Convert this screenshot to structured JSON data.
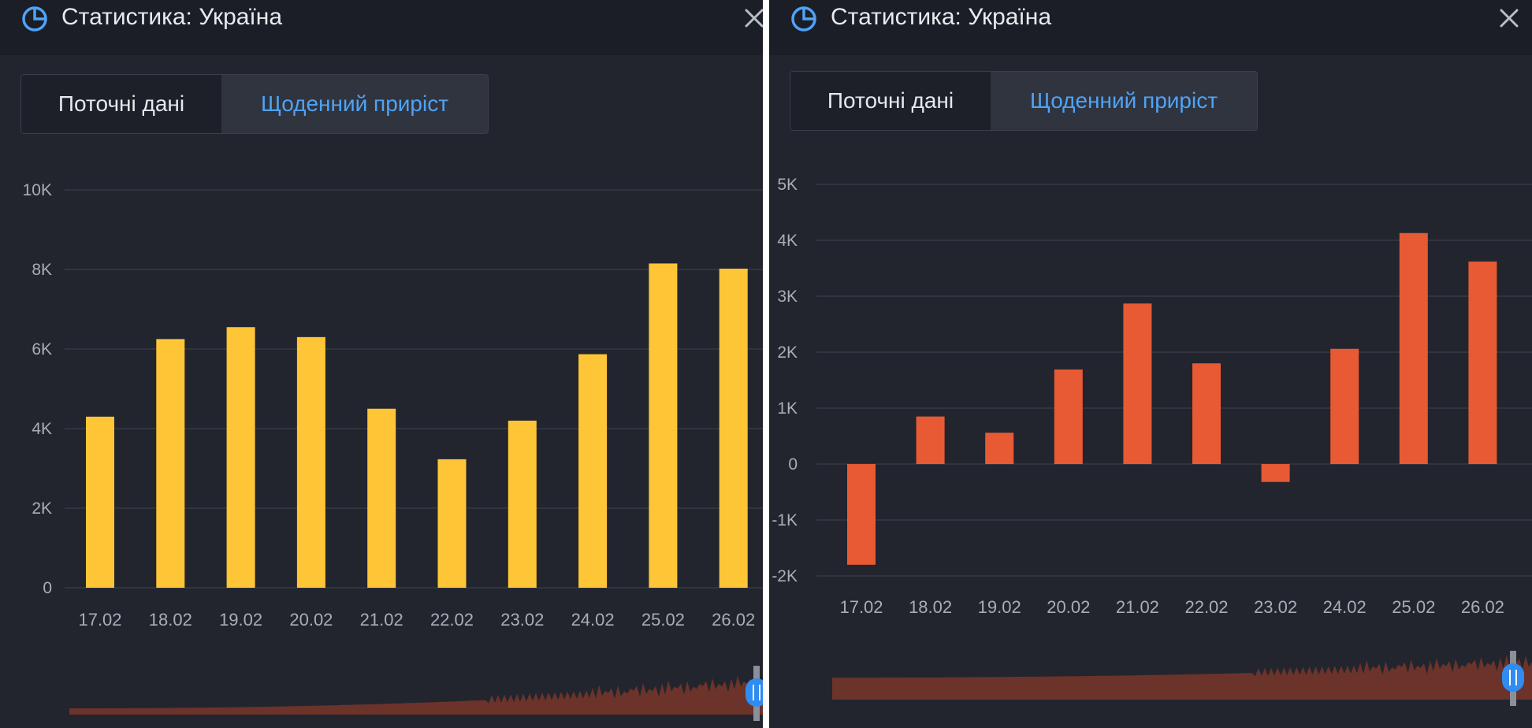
{
  "colors": {
    "panel_bg": "#22252e",
    "header_bg": "#1b1e26",
    "accent_blue": "#4fa3f7",
    "bar_yellow": "#fec636",
    "bar_orange": "#e75a34",
    "navigator_fill": "#6b3329"
  },
  "panels": [
    {
      "header": {
        "title": "Статистика: Україна",
        "icon": "pie-chart-icon",
        "close_icon": "close-icon"
      },
      "tabs": [
        {
          "label": "Поточні дані"
        },
        {
          "label": "Щоденний приріст",
          "active": true
        }
      ]
    },
    {
      "header": {
        "title": "Статистика: Україна",
        "icon": "pie-chart-icon",
        "close_icon": "close-icon"
      },
      "tabs": [
        {
          "label": "Поточні дані"
        },
        {
          "label": "Щоденний приріст",
          "active": true
        }
      ]
    }
  ],
  "chart_data": [
    {
      "type": "bar",
      "categories": [
        "17.02",
        "18.02",
        "19.02",
        "20.02",
        "21.02",
        "22.02",
        "23.02",
        "24.02",
        "25.02",
        "26.02"
      ],
      "values": [
        4300,
        6250,
        6550,
        6300,
        4500,
        3230,
        4200,
        5870,
        8150,
        8020
      ],
      "ylim": [
        0,
        10000
      ],
      "yticks": [
        0,
        2000,
        4000,
        6000,
        8000,
        10000
      ],
      "ytick_labels": [
        "0",
        "2K",
        "4K",
        "6K",
        "8K",
        "10K"
      ],
      "color": "#fec636",
      "grid": true
    },
    {
      "type": "bar",
      "categories": [
        "17.02",
        "18.02",
        "19.02",
        "20.02",
        "21.02",
        "22.02",
        "23.02",
        "24.02",
        "25.02",
        "26.02"
      ],
      "values": [
        -1800,
        850,
        560,
        1690,
        2870,
        1800,
        -320,
        2060,
        4130,
        3620
      ],
      "ylim": [
        -2000,
        5000
      ],
      "yticks": [
        -2000,
        -1000,
        0,
        1000,
        2000,
        3000,
        4000,
        5000
      ],
      "ytick_labels": [
        "-2K",
        "-1K",
        "0",
        "1K",
        "2K",
        "3K",
        "4K",
        "5K"
      ],
      "color": "#e75a34",
      "grid": true
    }
  ]
}
